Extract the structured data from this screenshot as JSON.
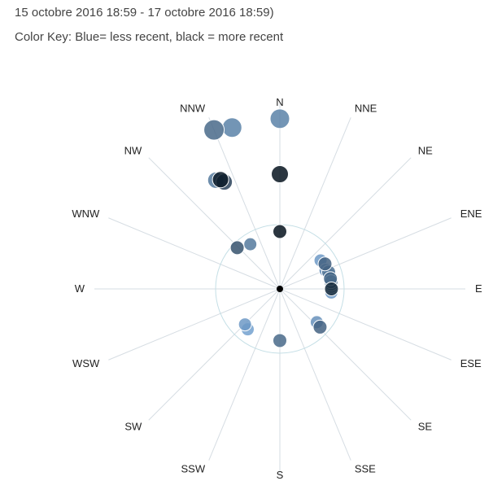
{
  "header": {
    "period": "15 octobre 2016 18:59 - 17 octobre 2016 18:59)",
    "color_key": "Color Key: Blue= less recent, black = more recent"
  },
  "chart_data": {
    "type": "scatter",
    "coordinate_system": "polar",
    "directions": [
      "N",
      "NNE",
      "NE",
      "ENE",
      "E",
      "ESE",
      "SE",
      "SSE",
      "S",
      "SSW",
      "SW",
      "WSW",
      "W",
      "WNW",
      "NW",
      "NNW"
    ],
    "grid": true,
    "reference_circle": true,
    "colors": {
      "axis": "#d6dde3",
      "reference_circle": "#c5dfe6",
      "center": "#000000",
      "less_recent": "#7fb1e2",
      "more_recent": "#06131f"
    },
    "points": [
      {
        "direction_deg": 0,
        "radius": 0.89,
        "size": 1.2,
        "recency": 0.3
      },
      {
        "direction_deg": 0,
        "radius": 0.6,
        "size": 1.05,
        "recency": 1.0
      },
      {
        "direction_deg": 0,
        "radius": 0.3,
        "size": 0.85,
        "recency": 1.0
      },
      {
        "direction_deg": -16.5,
        "radius": 0.88,
        "size": 1.2,
        "recency": 0.3
      },
      {
        "direction_deg": -22.5,
        "radius": 0.9,
        "size": 1.25,
        "recency": 0.45
      },
      {
        "direction_deg": -30.5,
        "radius": 0.66,
        "size": 1.0,
        "recency": 0.35
      },
      {
        "direction_deg": -27.5,
        "radius": 0.63,
        "size": 1.0,
        "recency": 0.7
      },
      {
        "direction_deg": -28.5,
        "radius": 0.65,
        "size": 1.0,
        "recency": 0.95
      },
      {
        "direction_deg": -33.5,
        "radius": 0.28,
        "size": 0.8,
        "recency": 0.35
      },
      {
        "direction_deg": -46.0,
        "radius": 0.31,
        "size": 0.85,
        "recency": 0.6
      },
      {
        "direction_deg": 55.0,
        "radius": 0.26,
        "size": 0.8,
        "recency": 0.15
      },
      {
        "direction_deg": 61.0,
        "radius": 0.27,
        "size": 0.85,
        "recency": 0.5
      },
      {
        "direction_deg": 68.0,
        "radius": 0.26,
        "size": 0.85,
        "recency": 0.2
      },
      {
        "direction_deg": 71.0,
        "radius": 0.27,
        "size": 0.85,
        "recency": 0.4
      },
      {
        "direction_deg": 75.0,
        "radius": 0.27,
        "size": 0.85,
        "recency": 0.3
      },
      {
        "direction_deg": 78.5,
        "radius": 0.27,
        "size": 0.85,
        "recency": 0.45
      },
      {
        "direction_deg": 82.0,
        "radius": 0.27,
        "size": 0.85,
        "recency": 0.4
      },
      {
        "direction_deg": 84.5,
        "radius": 0.27,
        "size": 0.85,
        "recency": 0.35
      },
      {
        "direction_deg": 87.0,
        "radius": 0.27,
        "size": 0.85,
        "recency": 0.25
      },
      {
        "direction_deg": 90.0,
        "radius": 0.27,
        "size": 0.85,
        "recency": 0.85
      },
      {
        "direction_deg": 94.0,
        "radius": 0.27,
        "size": 0.8,
        "recency": 0.15
      },
      {
        "direction_deg": 132.0,
        "radius": 0.26,
        "size": 0.8,
        "recency": 0.2
      },
      {
        "direction_deg": 133.5,
        "radius": 0.29,
        "size": 0.85,
        "recency": 0.5
      },
      {
        "direction_deg": 180.0,
        "radius": 0.27,
        "size": 0.85,
        "recency": 0.45
      },
      {
        "direction_deg": 218.5,
        "radius": 0.27,
        "size": 0.8,
        "recency": 0.1
      },
      {
        "direction_deg": 224.5,
        "radius": 0.26,
        "size": 0.8,
        "recency": 0.15
      }
    ]
  }
}
